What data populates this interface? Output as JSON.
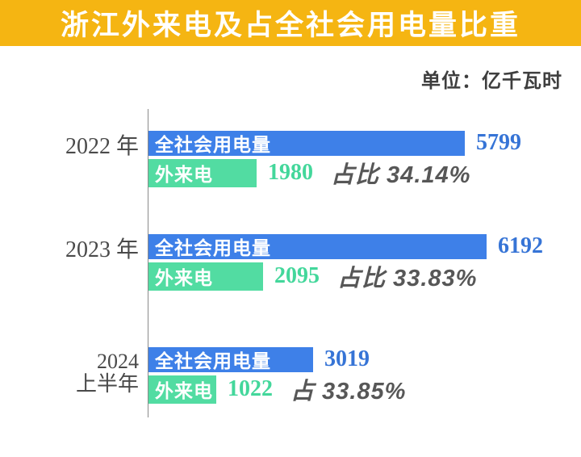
{
  "header": {
    "title": "浙江外来电及占全社会用电量比重",
    "unit_label": "单位：亿千瓦时"
  },
  "colors": {
    "page_bg": "#FFFFFF",
    "title_bg": "#F5B512",
    "title_text": "#FFFFFF",
    "total_bar": "#3E80E8",
    "total_value_text": "#3674D6",
    "external_bar": "#52DCA2",
    "external_value_text": "#43D79B",
    "share_text": "#575757",
    "year_text": "#4A4A4A",
    "axis_line": "#8A8A8A"
  },
  "chart_data": {
    "type": "bar",
    "orientation": "horizontal",
    "title": "浙江外来电及占全社会用电量比重",
    "unit": "亿千瓦时",
    "value_axis_max": 6192,
    "grid": false,
    "categories": [
      "2022 年",
      "2023 年",
      "2024 上半年"
    ],
    "category_lines": [
      [
        "2022 年"
      ],
      [
        "2023 年"
      ],
      [
        "2024",
        "上半年"
      ]
    ],
    "series": [
      {
        "name": "全社会用电量",
        "values": [
          5799,
          6192,
          3019
        ]
      },
      {
        "name": "外来电",
        "values": [
          1980,
          2095,
          1022
        ]
      }
    ],
    "share_labels": [
      "占比 34.14%",
      "占比 33.83%",
      "占 33.85%"
    ]
  }
}
